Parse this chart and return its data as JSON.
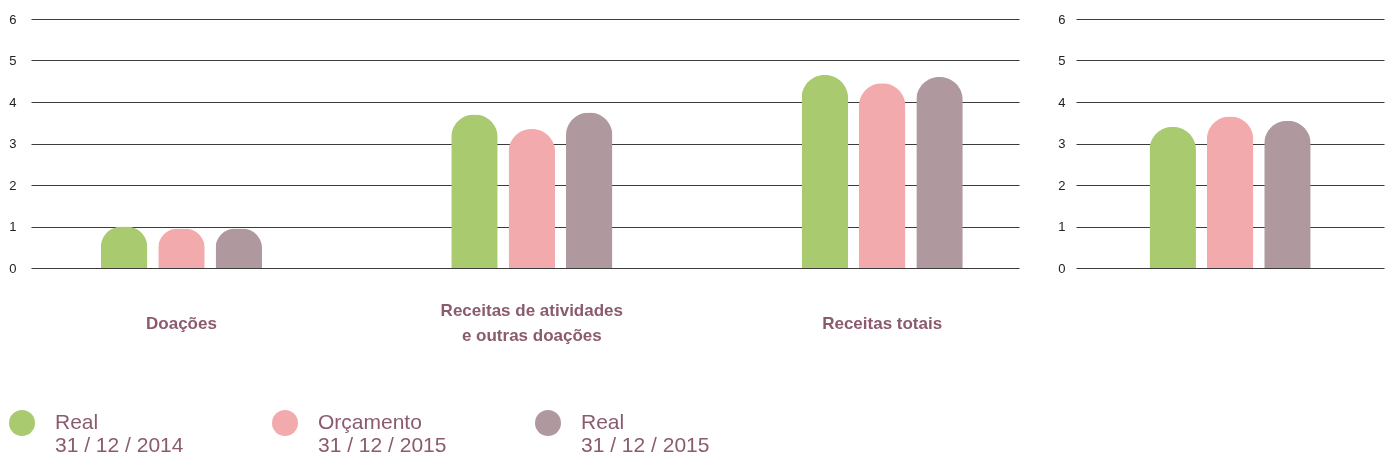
{
  "chart_data": [
    {
      "type": "bar",
      "categories": [
        "Doações",
        "Receitas de atividades e outras doações",
        "Receitas totais"
      ],
      "series": [
        {
          "name": "Real\n31 / 12 / 2014",
          "color": "#a9ca6e",
          "values": [
            1.0,
            3.7,
            4.65
          ]
        },
        {
          "name": "Orçamento\n31 / 12 / 2015",
          "color": "#f3aaad",
          "values": [
            0.95,
            3.35,
            4.45
          ]
        },
        {
          "name": "Real\n31 / 12 / 2015",
          "color": "#af999e",
          "values": [
            0.95,
            3.75,
            4.6
          ]
        }
      ],
      "ylim": [
        0,
        6
      ],
      "yticks": [
        0,
        1,
        2,
        3,
        4,
        5,
        6
      ],
      "grid": "y",
      "legend": "bottom left"
    },
    {
      "type": "bar",
      "categories": [
        null
      ],
      "series": [
        {
          "name": "Real\n31 / 12 / 2014",
          "color": "#a9ca6e",
          "values": [
            3.4
          ]
        },
        {
          "name": "Orçamento\n31 / 12 / 2015",
          "color": "#f3aaad",
          "values": [
            3.65
          ]
        },
        {
          "name": "Real\n31 / 12 / 2015",
          "color": "#af999e",
          "values": [
            3.55
          ]
        }
      ],
      "ylim": [
        0,
        6
      ],
      "yticks": [
        0,
        1,
        2,
        3,
        4,
        5,
        6
      ],
      "grid": "y"
    }
  ]
}
